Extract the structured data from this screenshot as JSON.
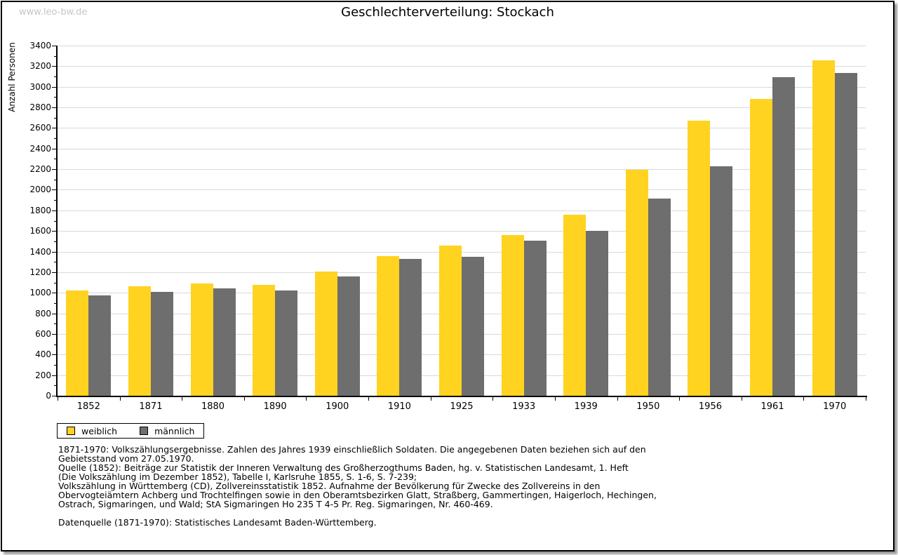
{
  "watermark": "www.leo-bw.de",
  "title": "Geschlechterverteilung: Stockach",
  "chart_data": {
    "type": "bar",
    "title": "Geschlechterverteilung: Stockach",
    "xlabel": "",
    "ylabel": "Anzahl Personen",
    "categories": [
      "1852",
      "1871",
      "1880",
      "1890",
      "1900",
      "1910",
      "1925",
      "1933",
      "1939",
      "1950",
      "1956",
      "1961",
      "1970"
    ],
    "series": [
      {
        "name": "weiblich",
        "color": "#ffd320",
        "values": [
          1020,
          1065,
          1090,
          1075,
          1205,
          1355,
          1460,
          1560,
          1755,
          2195,
          2670,
          2880,
          3260
        ]
      },
      {
        "name": "männlich",
        "color": "#6e6e6e",
        "values": [
          975,
          1010,
          1040,
          1020,
          1155,
          1330,
          1350,
          1505,
          1600,
          1915,
          2230,
          3090,
          3135
        ]
      }
    ],
    "ylim": [
      0,
      3400
    ],
    "ytick_major": 200,
    "ytick_minor": 100,
    "grid": true,
    "legend_position": "bottom-left",
    "colors": {
      "gridline": "#d9d9d9",
      "axis": "#000000"
    }
  },
  "notes": {
    "lines": [
      "1871-1970: Volkszählungsergebnisse. Zahlen des Jahres 1939 einschließlich Soldaten. Die angegebenen Daten beziehen sich auf den",
      "Gebietsstand vom 27.05.1970.",
      "Quelle (1852): Beiträge zur Statistik der Inneren Verwaltung des Großherzogthums Baden, hg. v. Statistischen Landesamt, 1. Heft",
      "(Die Volkszählung im Dezember 1852), Tabelle I, Karlsruhe 1855, S. 1-6, S. 7-239;",
      "Volkszählung in Württemberg (CD), Zollvereinsstatistik 1852. Aufnahme der Bevölkerung für Zwecke des Zollvereins in den",
      "Obervogteiämtern Achberg und Trochtelfingen sowie in den Oberamtsbezirken Glatt, Straßberg, Gammertingen, Haigerloch, Hechingen,",
      "Ostrach, Sigmaringen, und Wald; StA Sigmaringen Ho 235 T 4-5 Pr. Reg. Sigmaringen, Nr. 460-469."
    ],
    "datasource": "Datenquelle (1871-1970): Statistisches Landesamt Baden-Württemberg."
  }
}
